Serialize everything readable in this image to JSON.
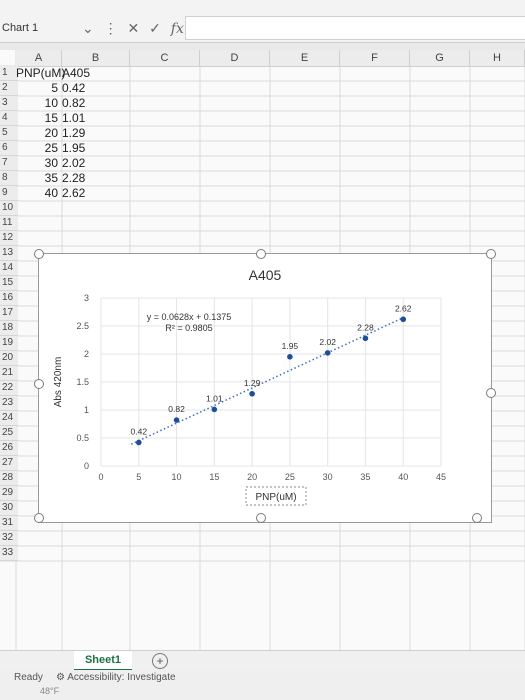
{
  "formula_bar": {
    "name_box": "Chart 1",
    "fx": "fx",
    "value": ""
  },
  "columns": [
    "A",
    "B",
    "C",
    "D",
    "E",
    "F",
    "G",
    "H"
  ],
  "rows": [
    "1",
    "2",
    "3",
    "4",
    "5",
    "6",
    "7",
    "8",
    "9",
    "10",
    "11",
    "12",
    "13",
    "14",
    "15",
    "16",
    "17",
    "18",
    "19",
    "20",
    "21",
    "22",
    "23",
    "24",
    "25",
    "26",
    "27",
    "28",
    "29",
    "30",
    "31",
    "32",
    "33"
  ],
  "table": {
    "header": [
      "PNP(uM)",
      "A405"
    ],
    "data": [
      [
        "5",
        "0.42"
      ],
      [
        "10",
        "0.82"
      ],
      [
        "15",
        "1.01"
      ],
      [
        "20",
        "1.29"
      ],
      [
        "25",
        "1.95"
      ],
      [
        "30",
        "2.02"
      ],
      [
        "35",
        "2.28"
      ],
      [
        "40",
        "2.62"
      ]
    ]
  },
  "chart_data": {
    "type": "scatter",
    "title": "A405",
    "xlabel": "PNP(uM)",
    "ylabel": "Abs 420nm",
    "xlim": [
      0,
      45
    ],
    "ylim": [
      0,
      3
    ],
    "xticks": [
      0,
      5,
      10,
      15,
      20,
      25,
      30,
      35,
      40,
      45
    ],
    "yticks": [
      0,
      0.5,
      1,
      1.5,
      2,
      2.5,
      3
    ],
    "points": {
      "x": [
        5,
        10,
        15,
        20,
        25,
        30,
        35,
        40
      ],
      "y": [
        0.42,
        0.82,
        1.01,
        1.29,
        1.95,
        2.02,
        2.28,
        2.62
      ]
    },
    "labels": [
      "0.42",
      "0.82",
      "1.01",
      "1.29",
      "1.95",
      "2.02",
      "2.28",
      "2.62"
    ],
    "trendline": {
      "slope": 0.0628,
      "intercept": 0.1375,
      "type": "linear",
      "style": "dotted"
    },
    "equation": "y = 0.0628x + 0.1375",
    "r2": "R² = 0.9805",
    "grid": true,
    "colors": {
      "marker": "#1f4e99",
      "trendline": "#3a6fc4"
    }
  },
  "tabs": {
    "sheet1": "Sheet1",
    "add": "+"
  },
  "status": {
    "ready": "Ready",
    "accessibility": "Accessibility: Investigate",
    "temp": "48°F"
  }
}
